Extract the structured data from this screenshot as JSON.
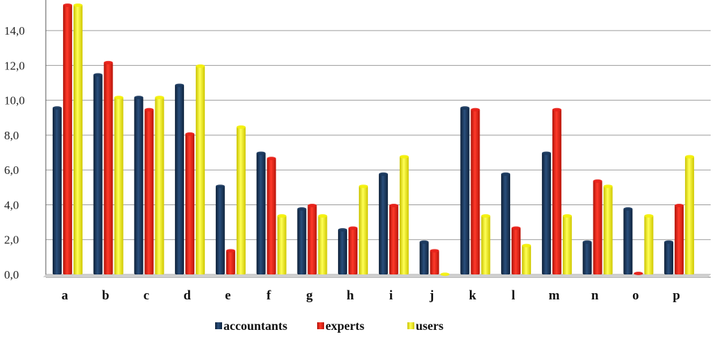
{
  "chart_data": {
    "type": "bar",
    "title": "",
    "xlabel": "",
    "ylabel": "",
    "ylim": [
      0,
      15.2
    ],
    "y_ticks": [
      "0,0",
      "2,0",
      "4,0",
      "6,0",
      "8,0",
      "10,0",
      "12,0",
      "14,0"
    ],
    "y_tick_values": [
      0,
      2,
      4,
      6,
      8,
      10,
      12,
      14
    ],
    "grid": true,
    "legend_position": "bottom",
    "categories": [
      "a",
      "b",
      "c",
      "d",
      "e",
      "f",
      "g",
      "h",
      "i",
      "j",
      "k",
      "l",
      "m",
      "n",
      "o",
      "p"
    ],
    "series": [
      {
        "name": "accountants",
        "color": "#1c3a5e",
        "values": [
          9.6,
          11.5,
          10.2,
          10.9,
          5.1,
          7.0,
          3.8,
          2.6,
          5.8,
          1.9,
          9.6,
          5.8,
          7.0,
          1.9,
          3.8,
          1.9
        ]
      },
      {
        "name": "experts",
        "color": "#e8211a",
        "values": [
          15.5,
          12.2,
          9.5,
          8.1,
          1.4,
          6.7,
          4.0,
          2.7,
          4.0,
          1.4,
          9.5,
          2.7,
          9.5,
          5.4,
          0.1,
          4.0
        ]
      },
      {
        "name": "users",
        "color": "#f4f10a",
        "values": [
          15.5,
          10.2,
          10.2,
          12.0,
          8.5,
          3.4,
          3.4,
          5.1,
          6.8,
          0.05,
          3.4,
          1.7,
          3.4,
          5.1,
          3.4,
          6.8
        ]
      }
    ]
  }
}
